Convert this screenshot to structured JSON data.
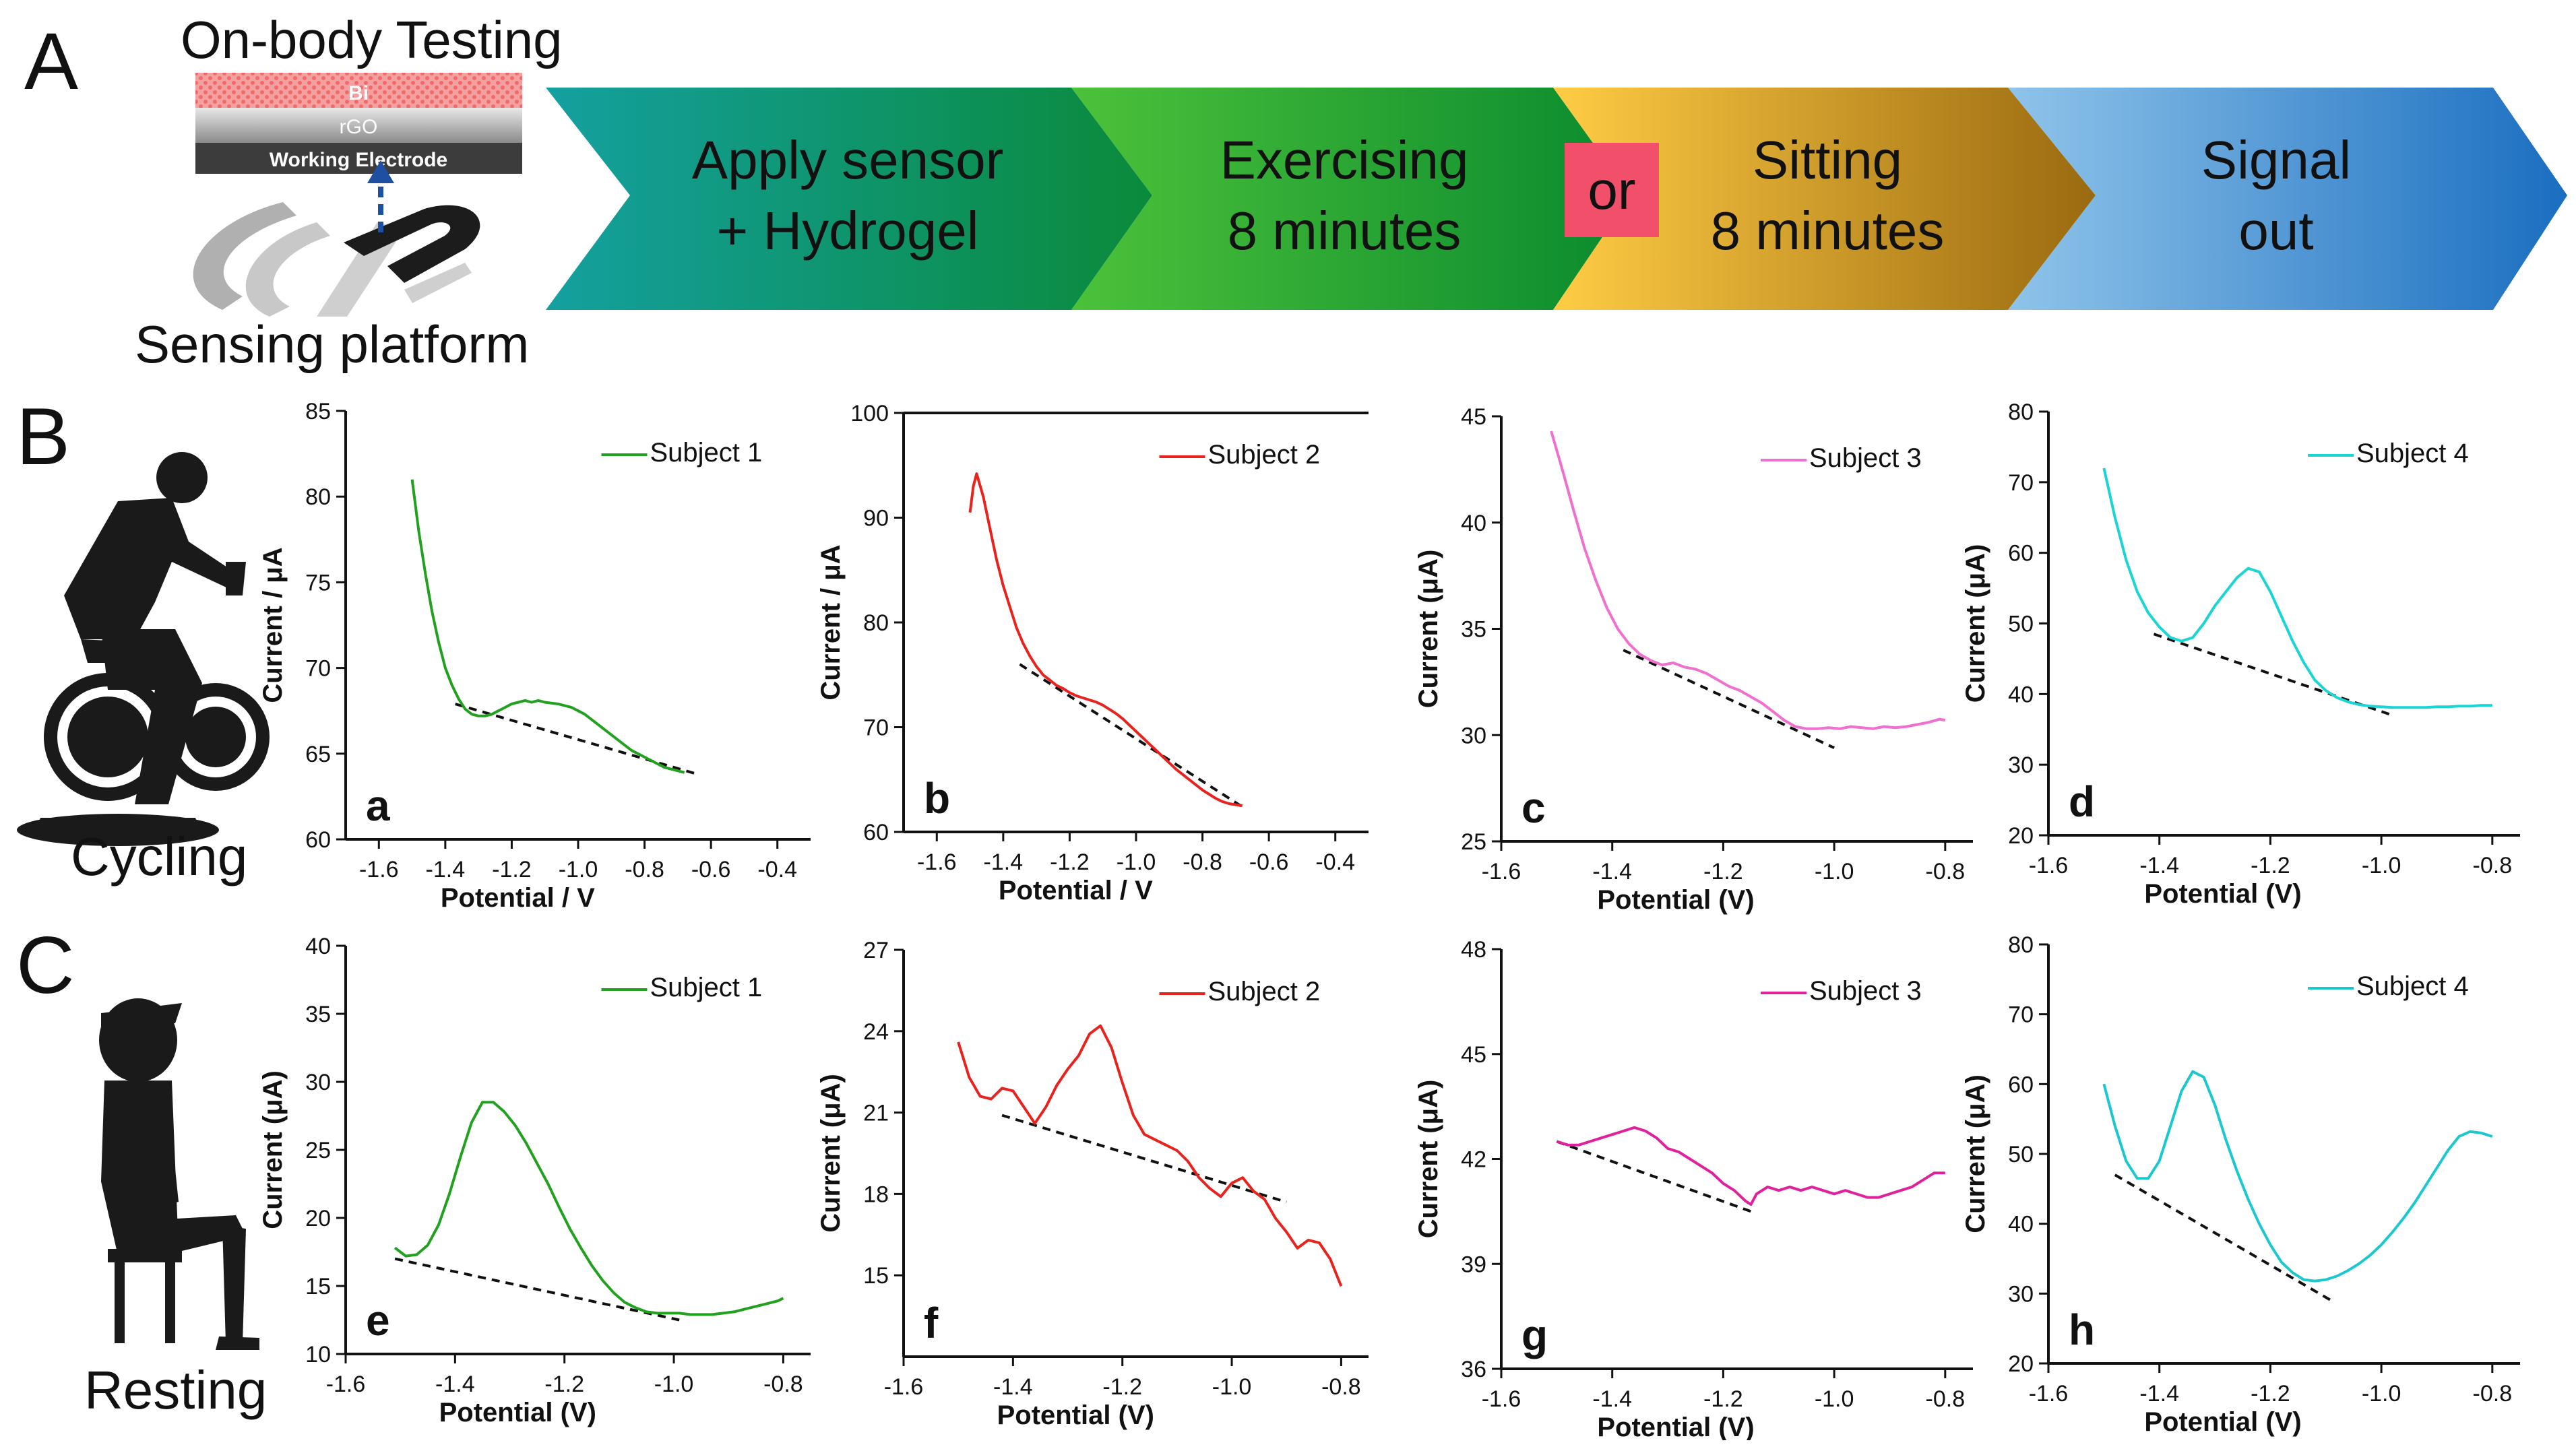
{
  "panel_letters": {
    "A": "A",
    "B": "B",
    "C": "C"
  },
  "workflow": {
    "title": "On-body Testing",
    "layers": [
      "Bi",
      "rGO",
      "Working Electrode"
    ],
    "platform_label": "Sensing platform",
    "steps": [
      {
        "line1": "Apply sensor",
        "line2": "+ Hydrogel"
      },
      {
        "line1": "Exercising",
        "line2": "8 minutes"
      },
      {
        "line1": "Sitting",
        "line2": "8 minutes"
      },
      {
        "line1": "Signal",
        "line2": "out"
      }
    ],
    "or_label": "or"
  },
  "figure_labels": {
    "cycling": "Cycling",
    "resting": "Resting"
  },
  "chart_data": [
    {
      "id": "a",
      "type": "line",
      "panel": "a",
      "legend": "Subject 1",
      "color": "#22a020",
      "xlabel": "Potential / V",
      "ylabel": "Current / μA",
      "xlim": [
        -1.7,
        -0.3
      ],
      "ylim": [
        60,
        85
      ],
      "xticks": [
        -1.6,
        -1.4,
        -1.2,
        -1.0,
        -0.8,
        -0.6,
        -0.4
      ],
      "yticks": [
        60,
        65,
        70,
        75,
        80,
        85
      ],
      "x": [
        -1.5,
        -1.48,
        -1.46,
        -1.44,
        -1.42,
        -1.4,
        -1.38,
        -1.36,
        -1.34,
        -1.32,
        -1.3,
        -1.28,
        -1.26,
        -1.24,
        -1.22,
        -1.2,
        -1.18,
        -1.16,
        -1.14,
        -1.12,
        -1.1,
        -1.08,
        -1.06,
        -1.04,
        -1.02,
        -1.0,
        -0.98,
        -0.96,
        -0.94,
        -0.92,
        -0.9,
        -0.88,
        -0.86,
        -0.84,
        -0.82,
        -0.8,
        -0.78,
        -0.76,
        -0.74,
        -0.72,
        -0.7,
        -0.68
      ],
      "y": [
        81,
        78,
        75.5,
        73.3,
        71.5,
        70,
        69,
        68.2,
        67.6,
        67.3,
        67.2,
        67.2,
        67.3,
        67.5,
        67.7,
        67.9,
        68,
        68.1,
        68,
        68.1,
        68,
        67.95,
        67.9,
        67.8,
        67.7,
        67.5,
        67.3,
        67,
        66.7,
        66.4,
        66.1,
        65.8,
        65.5,
        65.2,
        65,
        64.8,
        64.6,
        64.4,
        64.2,
        64.1,
        64,
        63.9
      ],
      "baseline": {
        "x": [
          -1.37,
          -0.64
        ],
        "y": [
          67.9,
          63.8
        ]
      }
    },
    {
      "id": "b",
      "type": "line",
      "panel": "b",
      "legend": "Subject 2",
      "color": "#e8231e",
      "xlabel": "Potential / V",
      "ylabel": "Current / μA",
      "xlim": [
        -1.7,
        -0.3
      ],
      "ylim": [
        60,
        100
      ],
      "xticks": [
        -1.6,
        -1.4,
        -1.2,
        -1.0,
        -0.8,
        -0.6,
        -0.4
      ],
      "yticks": [
        60,
        70,
        80,
        90,
        100
      ],
      "x": [
        -1.5,
        -1.49,
        -1.48,
        -1.46,
        -1.44,
        -1.42,
        -1.4,
        -1.38,
        -1.36,
        -1.34,
        -1.32,
        -1.3,
        -1.28,
        -1.26,
        -1.24,
        -1.22,
        -1.2,
        -1.18,
        -1.16,
        -1.14,
        -1.12,
        -1.1,
        -1.08,
        -1.06,
        -1.04,
        -1.02,
        -1.0,
        -0.98,
        -0.96,
        -0.94,
        -0.92,
        -0.9,
        -0.88,
        -0.86,
        -0.84,
        -0.82,
        -0.8,
        -0.78,
        -0.76,
        -0.74,
        -0.72,
        -0.7,
        -0.68
      ],
      "y": [
        90.5,
        93,
        94.2,
        92,
        89,
        86,
        83.5,
        81.5,
        79.5,
        78,
        76.8,
        75.8,
        75,
        74.5,
        74,
        73.7,
        73.3,
        73,
        72.8,
        72.6,
        72.4,
        72.1,
        71.7,
        71.3,
        70.8,
        70.2,
        69.6,
        69,
        68.4,
        67.8,
        67.2,
        66.6,
        66,
        65.5,
        65,
        64.5,
        64,
        63.6,
        63.2,
        62.9,
        62.7,
        62.6,
        62.5
      ],
      "baseline": {
        "x": [
          -1.35,
          -0.67
        ],
        "y": [
          76,
          62.2
        ]
      }
    },
    {
      "id": "c",
      "type": "line",
      "panel": "c",
      "legend": "Subject 3",
      "color": "#f070d0",
      "xlabel": "Potential (V)",
      "ylabel": "Current (μA)",
      "xlim": [
        -1.6,
        -0.75
      ],
      "ylim": [
        25,
        45
      ],
      "xticks": [
        -1.6,
        -1.4,
        -1.2,
        -1.0,
        -0.8
      ],
      "yticks": [
        25,
        30,
        35,
        40,
        45
      ],
      "x": [
        -1.51,
        -1.49,
        -1.47,
        -1.45,
        -1.43,
        -1.41,
        -1.39,
        -1.37,
        -1.35,
        -1.33,
        -1.31,
        -1.29,
        -1.27,
        -1.25,
        -1.23,
        -1.21,
        -1.19,
        -1.17,
        -1.15,
        -1.13,
        -1.11,
        -1.09,
        -1.07,
        -1.05,
        -1.03,
        -1.01,
        -0.99,
        -0.97,
        -0.95,
        -0.93,
        -0.91,
        -0.89,
        -0.87,
        -0.85,
        -0.83,
        -0.81,
        -0.8
      ],
      "y": [
        44.3,
        42.5,
        40.6,
        38.8,
        37.3,
        36,
        35,
        34.3,
        33.8,
        33.5,
        33.3,
        33.4,
        33.2,
        33.1,
        32.9,
        32.6,
        32.3,
        32.1,
        31.8,
        31.5,
        31.1,
        30.7,
        30.4,
        30.3,
        30.3,
        30.35,
        30.3,
        30.4,
        30.35,
        30.3,
        30.4,
        30.35,
        30.4,
        30.5,
        30.6,
        30.75,
        30.7
      ],
      "baseline": {
        "x": [
          -1.38,
          -1.0
        ],
        "y": [
          34,
          29.4
        ]
      }
    },
    {
      "id": "d",
      "type": "line",
      "panel": "d",
      "legend": "Subject 4",
      "color": "#1bd5d5",
      "xlabel": "Potential (V)",
      "ylabel": "Current (μA)",
      "xlim": [
        -1.6,
        -0.75
      ],
      "ylim": [
        20,
        80
      ],
      "xticks": [
        -1.6,
        -1.4,
        -1.2,
        -1.0,
        -0.8
      ],
      "yticks": [
        20,
        30,
        40,
        50,
        60,
        70,
        80
      ],
      "x": [
        -1.5,
        -1.48,
        -1.46,
        -1.44,
        -1.42,
        -1.4,
        -1.38,
        -1.36,
        -1.34,
        -1.32,
        -1.3,
        -1.28,
        -1.26,
        -1.24,
        -1.22,
        -1.2,
        -1.18,
        -1.16,
        -1.14,
        -1.12,
        -1.1,
        -1.08,
        -1.06,
        -1.04,
        -1.02,
        -1.0,
        -0.98,
        -0.96,
        -0.94,
        -0.92,
        -0.9,
        -0.88,
        -0.86,
        -0.84,
        -0.82,
        -0.8
      ],
      "y": [
        72,
        65,
        59,
        54.5,
        51.5,
        49.5,
        48,
        47.5,
        48,
        50,
        52.5,
        54.5,
        56.5,
        57.8,
        57.3,
        54.5,
        51,
        47.5,
        44.5,
        42,
        40.5,
        39.5,
        38.9,
        38.5,
        38.3,
        38.2,
        38.1,
        38.1,
        38.1,
        38.1,
        38.2,
        38.2,
        38.3,
        38.3,
        38.4,
        38.4
      ],
      "baseline": {
        "x": [
          -1.41,
          -0.98
        ],
        "y": [
          48.5,
          37
        ]
      }
    },
    {
      "id": "e",
      "type": "line",
      "panel": "e",
      "legend": "Subject 1",
      "color": "#22a020",
      "xlabel": "Potential (V)",
      "ylabel": "Current (μA)",
      "xlim": [
        -1.6,
        -0.75
      ],
      "ylim": [
        10,
        40
      ],
      "xticks": [
        -1.6,
        -1.4,
        -1.2,
        -1.0,
        -0.8
      ],
      "yticks": [
        10,
        15,
        20,
        25,
        30,
        35,
        40
      ],
      "x": [
        -1.51,
        -1.49,
        -1.47,
        -1.45,
        -1.43,
        -1.41,
        -1.39,
        -1.37,
        -1.35,
        -1.33,
        -1.31,
        -1.29,
        -1.27,
        -1.25,
        -1.23,
        -1.21,
        -1.19,
        -1.17,
        -1.15,
        -1.13,
        -1.11,
        -1.09,
        -1.07,
        -1.05,
        -1.03,
        -1.01,
        -0.99,
        -0.97,
        -0.95,
        -0.93,
        -0.91,
        -0.89,
        -0.87,
        -0.85,
        -0.83,
        -0.81,
        -0.8
      ],
      "y": [
        17.8,
        17.2,
        17.3,
        18,
        19.5,
        21.8,
        24.5,
        27,
        28.5,
        28.5,
        27.8,
        26.8,
        25.5,
        24,
        22.5,
        20.8,
        19.2,
        17.8,
        16.5,
        15.4,
        14.5,
        13.8,
        13.4,
        13.1,
        13,
        13,
        13,
        12.9,
        12.9,
        12.9,
        13,
        13.1,
        13.3,
        13.5,
        13.7,
        13.9,
        14.1
      ],
      "baseline": {
        "x": [
          -1.51,
          -0.99
        ],
        "y": [
          17,
          12.5
        ]
      }
    },
    {
      "id": "f",
      "type": "line",
      "panel": "f",
      "legend": "Subject 2",
      "color": "#e8231e",
      "xlabel": "Potential (V)",
      "ylabel": "Current (μA)",
      "xlim": [
        -1.6,
        -0.75
      ],
      "ylim": [
        12,
        27
      ],
      "xticks": [
        -1.6,
        -1.4,
        -1.2,
        -1.0,
        -0.8
      ],
      "yticks": [
        15,
        18,
        21,
        24,
        27
      ],
      "x": [
        -1.5,
        -1.48,
        -1.46,
        -1.44,
        -1.42,
        -1.4,
        -1.38,
        -1.36,
        -1.34,
        -1.32,
        -1.3,
        -1.28,
        -1.26,
        -1.24,
        -1.22,
        -1.2,
        -1.18,
        -1.16,
        -1.14,
        -1.12,
        -1.1,
        -1.08,
        -1.06,
        -1.04,
        -1.02,
        -1.0,
        -0.98,
        -0.96,
        -0.94,
        -0.92,
        -0.9,
        -0.88,
        -0.86,
        -0.84,
        -0.82,
        -0.8
      ],
      "y": [
        23.6,
        22.3,
        21.6,
        21.5,
        21.9,
        21.8,
        21.2,
        20.6,
        21.2,
        22,
        22.6,
        23.1,
        23.9,
        24.2,
        23.4,
        22.1,
        20.9,
        20.2,
        20,
        19.8,
        19.6,
        19.2,
        18.6,
        18.2,
        17.9,
        18.4,
        18.6,
        18.1,
        17.8,
        17.1,
        16.6,
        16,
        16.3,
        16.2,
        15.6,
        14.6
      ],
      "baseline": {
        "x": [
          -1.42,
          -0.9
        ],
        "y": [
          20.9,
          17.7
        ]
      }
    },
    {
      "id": "g",
      "type": "line",
      "panel": "g",
      "legend": "Subject 3",
      "color": "#e0219c",
      "xlabel": "Potential (V)",
      "ylabel": "Current (μA)",
      "xlim": [
        -1.6,
        -0.75
      ],
      "ylim": [
        36,
        48
      ],
      "xticks": [
        -1.6,
        -1.4,
        -1.2,
        -1.0,
        -0.8
      ],
      "yticks": [
        36,
        39,
        42,
        45,
        48
      ],
      "x": [
        -1.5,
        -1.48,
        -1.46,
        -1.44,
        -1.42,
        -1.4,
        -1.38,
        -1.36,
        -1.34,
        -1.32,
        -1.3,
        -1.28,
        -1.26,
        -1.24,
        -1.22,
        -1.2,
        -1.18,
        -1.16,
        -1.15,
        -1.14,
        -1.12,
        -1.1,
        -1.08,
        -1.06,
        -1.04,
        -1.02,
        -1.0,
        -0.98,
        -0.96,
        -0.94,
        -0.92,
        -0.9,
        -0.88,
        -0.86,
        -0.84,
        -0.82,
        -0.8
      ],
      "y": [
        42.5,
        42.4,
        42.4,
        42.5,
        42.6,
        42.7,
        42.8,
        42.9,
        42.8,
        42.6,
        42.3,
        42.2,
        42,
        41.8,
        41.6,
        41.3,
        41.1,
        40.8,
        40.7,
        41,
        41.2,
        41.1,
        41.2,
        41.1,
        41.2,
        41.1,
        41,
        41.1,
        41,
        40.9,
        40.9,
        41,
        41.1,
        41.2,
        41.4,
        41.6,
        41.6
      ],
      "baseline": {
        "x": [
          -1.5,
          -1.15
        ],
        "y": [
          42.5,
          40.5
        ]
      }
    },
    {
      "id": "h",
      "type": "line",
      "panel": "h",
      "legend": "Subject 4",
      "color": "#1bc8d0",
      "xlabel": "Potential (V)",
      "ylabel": "Current (μA)",
      "xlim": [
        -1.6,
        -0.75
      ],
      "ylim": [
        20,
        80
      ],
      "xticks": [
        -1.6,
        -1.4,
        -1.2,
        -1.0,
        -0.8
      ],
      "yticks": [
        20,
        30,
        40,
        50,
        60,
        70,
        80
      ],
      "x": [
        -1.5,
        -1.48,
        -1.46,
        -1.44,
        -1.42,
        -1.4,
        -1.38,
        -1.36,
        -1.34,
        -1.32,
        -1.3,
        -1.28,
        -1.26,
        -1.24,
        -1.22,
        -1.2,
        -1.18,
        -1.16,
        -1.14,
        -1.12,
        -1.1,
        -1.08,
        -1.06,
        -1.04,
        -1.02,
        -1.0,
        -0.98,
        -0.96,
        -0.94,
        -0.92,
        -0.9,
        -0.88,
        -0.86,
        -0.84,
        -0.82,
        -0.8
      ],
      "y": [
        60,
        54,
        49,
        46.5,
        46.5,
        49,
        54,
        59,
        61.8,
        61,
        57,
        52,
        47.5,
        43.5,
        40,
        37,
        34.5,
        33,
        32,
        31.8,
        32,
        32.5,
        33.3,
        34.3,
        35.5,
        37,
        38.8,
        40.8,
        43,
        45.5,
        48,
        50.5,
        52.5,
        53.2,
        53,
        52.5
      ],
      "baseline": {
        "x": [
          -1.48,
          -1.09
        ],
        "y": [
          47,
          29
        ]
      }
    }
  ]
}
